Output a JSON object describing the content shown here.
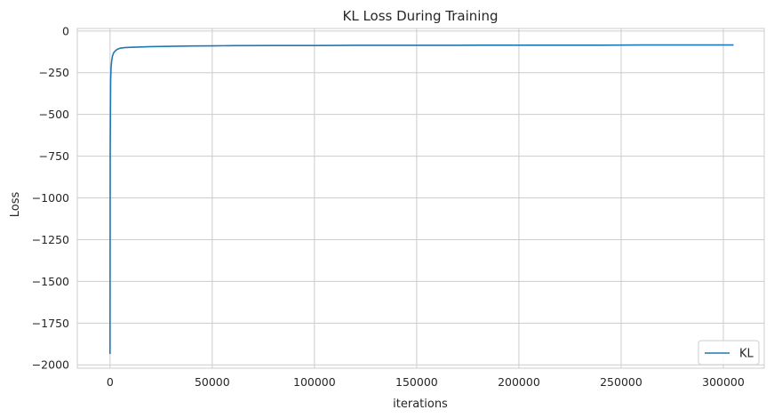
{
  "chart_data": {
    "type": "line",
    "title": "KL Loss During Training",
    "xlabel": "iterations",
    "ylabel": "Loss",
    "xlim": [
      -16000,
      320000
    ],
    "ylim": [
      -2020,
      15
    ],
    "grid": true,
    "legend_position": "lower right",
    "x_ticks": [
      0,
      50000,
      100000,
      150000,
      200000,
      250000,
      300000
    ],
    "x_tick_labels": [
      "0",
      "50000",
      "100000",
      "150000",
      "200000",
      "250000",
      "300000"
    ],
    "y_ticks": [
      0,
      -250,
      -500,
      -750,
      -1000,
      -1250,
      -1500,
      -1750,
      -2000
    ],
    "y_tick_labels": [
      "0",
      "−250",
      "−500",
      "−750",
      "−1000",
      "−1250",
      "−1500",
      "−1750",
      "−2000"
    ],
    "series": [
      {
        "name": "KL",
        "color": "#1f77b4",
        "x": [
          0,
          100,
          300,
          500,
          800,
          1200,
          1800,
          2500,
          3500,
          5000,
          7000,
          10000,
          15000,
          20000,
          30000,
          40000,
          50000,
          60000,
          80000,
          100000,
          120000,
          140000,
          160000,
          180000,
          200000,
          220000,
          240000,
          260000,
          280000,
          300000,
          305000
        ],
        "y": [
          -1935,
          -700,
          -300,
          -220,
          -180,
          -150,
          -130,
          -120,
          -110,
          -103,
          -100,
          -98,
          -96,
          -94,
          -92,
          -90,
          -89,
          -88,
          -87,
          -87,
          -86,
          -86,
          -86,
          -85,
          -85,
          -85,
          -85,
          -84,
          -84,
          -84,
          -84
        ]
      }
    ]
  }
}
